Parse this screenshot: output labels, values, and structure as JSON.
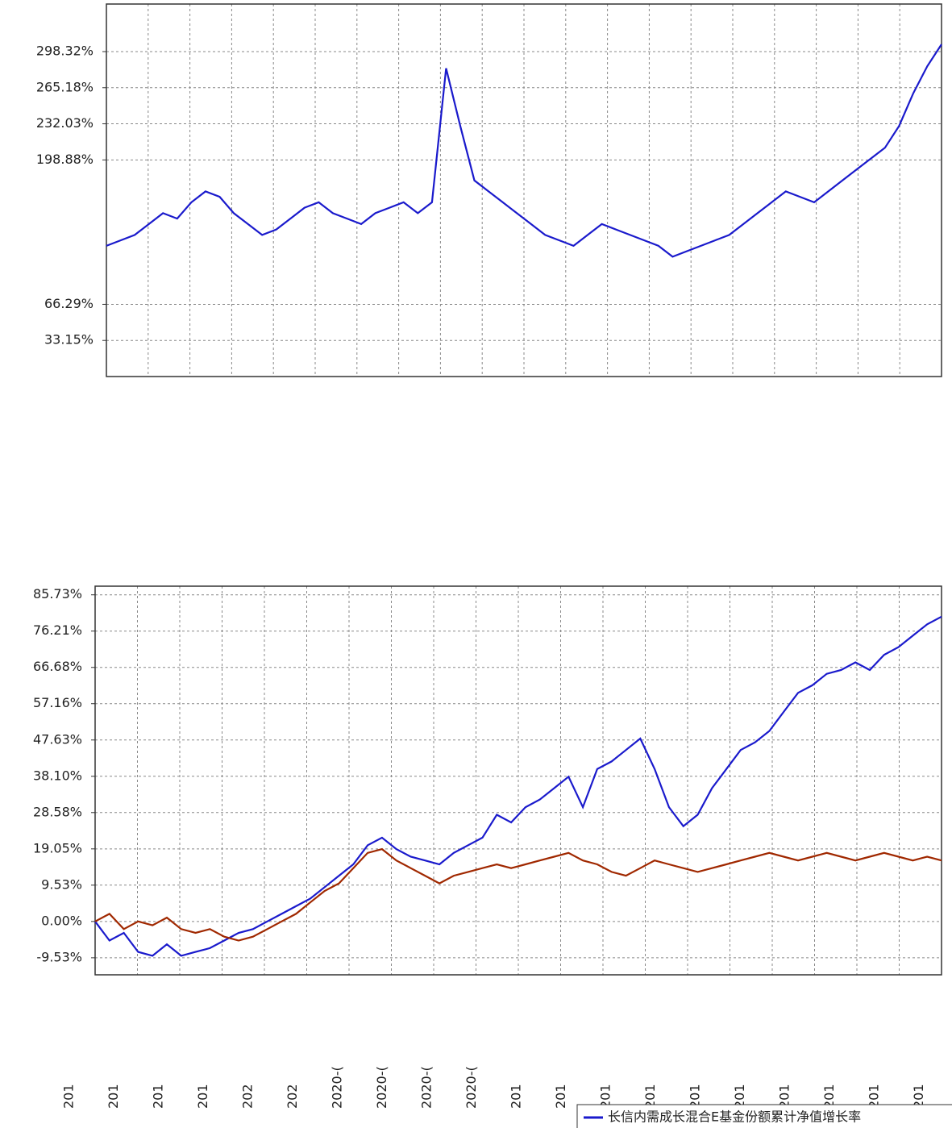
{
  "chart_data": [
    {
      "type": "line",
      "ylim": [
        0,
        342
      ],
      "yticks": [
        {
          "value": 298.32,
          "label": "298.32%"
        },
        {
          "value": 265.18,
          "label": "265.18%"
        },
        {
          "value": 232.03,
          "label": "232.03%"
        },
        {
          "value": 198.88,
          "label": "198.88%"
        },
        {
          "value": 66.29,
          "label": "66.29%"
        },
        {
          "value": 33.15,
          "label": "33.15%"
        }
      ],
      "grid": true,
      "series": [
        {
          "color": "#1a1acc",
          "values": [
            120,
            125,
            130,
            140,
            150,
            145,
            160,
            170,
            165,
            150,
            140,
            130,
            135,
            145,
            155,
            160,
            150,
            145,
            140,
            150,
            155,
            160,
            150,
            160,
            283,
            230,
            180,
            170,
            160,
            150,
            140,
            130,
            125,
            120,
            130,
            140,
            135,
            130,
            125,
            120,
            110,
            115,
            120,
            125,
            130,
            140,
            150,
            160,
            170,
            165,
            160,
            170,
            180,
            190,
            200,
            210,
            230,
            260,
            285,
            305
          ]
        }
      ]
    },
    {
      "type": "line",
      "ylim": [
        -14,
        88
      ],
      "yticks": [
        {
          "value": 85.73,
          "label": "85.73%"
        },
        {
          "value": 76.21,
          "label": "76.21%"
        },
        {
          "value": 66.68,
          "label": "66.68%"
        },
        {
          "value": 57.16,
          "label": "57.16%"
        },
        {
          "value": 47.63,
          "label": "47.63%"
        },
        {
          "value": 38.1,
          "label": "38.10%"
        },
        {
          "value": 28.58,
          "label": "28.58%"
        },
        {
          "value": 19.05,
          "label": "19.05%"
        },
        {
          "value": 9.53,
          "label": "9.53%"
        },
        {
          "value": 0,
          "label": "0.00%"
        },
        {
          "value": -9.53,
          "label": "-9.53%"
        }
      ],
      "grid": true,
      "xticklabels": [
        "201",
        "201",
        "201",
        "201",
        "202",
        "202",
        "2020-(",
        "2020-(",
        "2020-(",
        "2020-(",
        "201",
        "201",
        "201",
        "201",
        "201",
        "201",
        "201",
        "201",
        "201",
        "201"
      ],
      "series": [
        {
          "name": "长信内需成长混合E基金份额累计净值增长率",
          "color": "#1a1acc",
          "values": [
            0,
            -5,
            -3,
            -8,
            -9,
            -6,
            -9,
            -8,
            -7,
            -5,
            -3,
            -2,
            0,
            2,
            4,
            6,
            9,
            12,
            15,
            20,
            22,
            19,
            17,
            16,
            15,
            18,
            20,
            22,
            28,
            26,
            30,
            32,
            35,
            38,
            30,
            40,
            42,
            45,
            48,
            40,
            30,
            25,
            28,
            35,
            40,
            45,
            47,
            50,
            55,
            60,
            62,
            65,
            66,
            68,
            66,
            70,
            72,
            75,
            78,
            80
          ]
        },
        {
          "color": "#a02800",
          "values": [
            0,
            2,
            -2,
            0,
            -1,
            1,
            -2,
            -3,
            -2,
            -4,
            -5,
            -4,
            -2,
            0,
            2,
            5,
            8,
            10,
            14,
            18,
            19,
            16,
            14,
            12,
            10,
            12,
            13,
            14,
            15,
            14,
            15,
            16,
            17,
            18,
            16,
            15,
            13,
            12,
            14,
            16,
            15,
            14,
            13,
            14,
            15,
            16,
            17,
            18,
            17,
            16,
            17,
            18,
            17,
            16,
            17,
            18,
            17,
            16,
            17,
            16
          ]
        }
      ]
    }
  ]
}
